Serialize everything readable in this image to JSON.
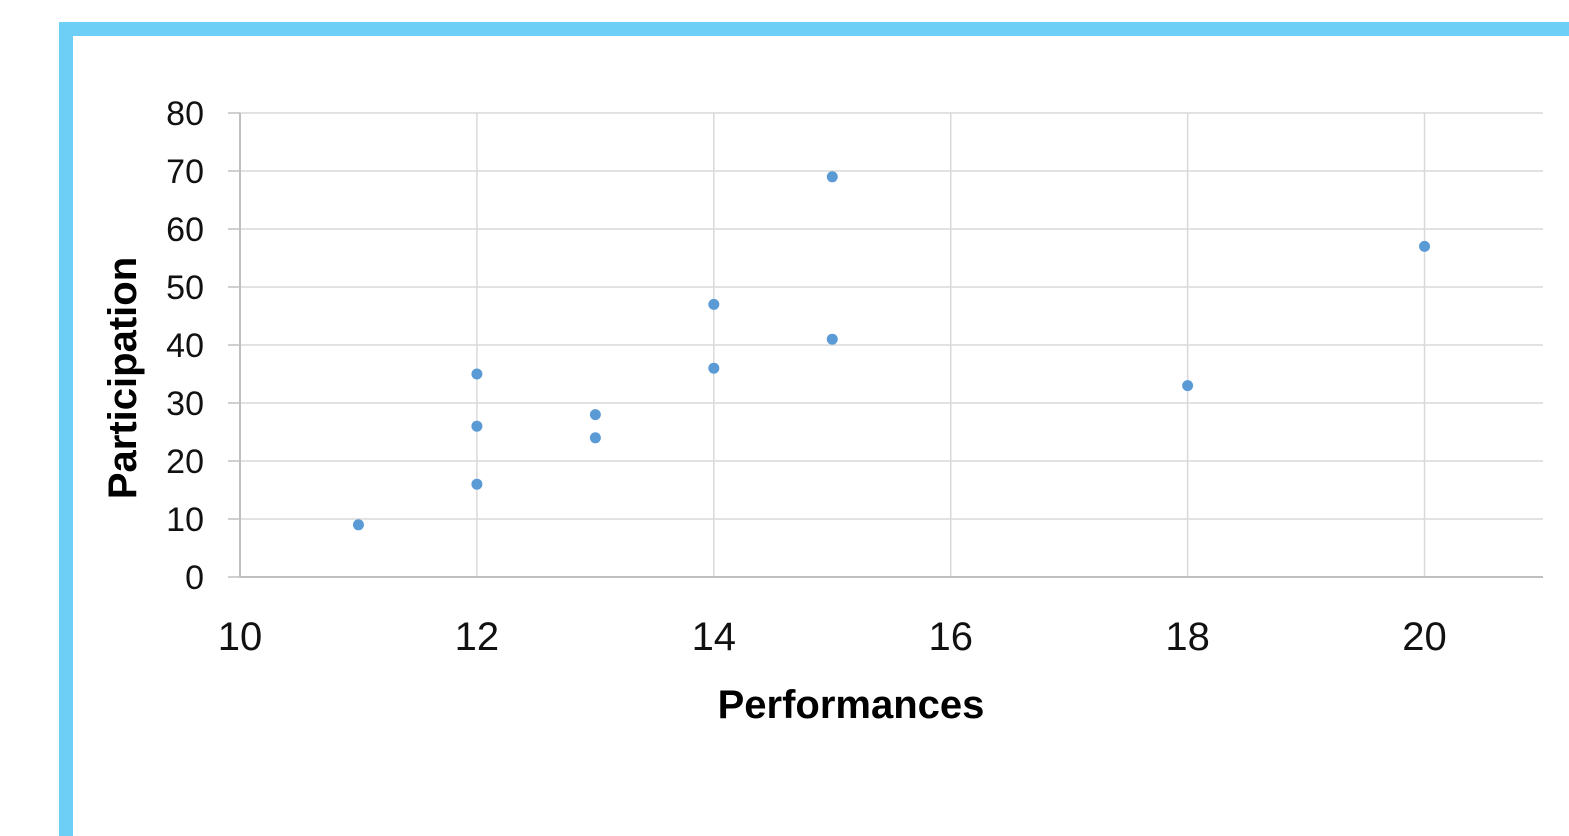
{
  "colors": {
    "frame_border": "#6ecff6",
    "point": "#5b9bd5",
    "grid": "#d9d9d9",
    "axis": "#bfbfbf",
    "text": "#111111"
  },
  "chart_data": {
    "type": "scatter",
    "title": "",
    "xlabel": "Performances",
    "ylabel": "Participation",
    "xlim": [
      10,
      21
    ],
    "ylim": [
      0,
      80
    ],
    "x_ticks": [
      10,
      12,
      14,
      16,
      18,
      20
    ],
    "y_ticks": [
      0,
      10,
      20,
      30,
      40,
      50,
      60,
      70,
      80
    ],
    "grid": true,
    "legend": "none",
    "series": [
      {
        "points": [
          {
            "x": 11,
            "y": 9
          },
          {
            "x": 12,
            "y": 16
          },
          {
            "x": 12,
            "y": 26
          },
          {
            "x": 12,
            "y": 35
          },
          {
            "x": 13,
            "y": 24
          },
          {
            "x": 13,
            "y": 28
          },
          {
            "x": 14,
            "y": 36
          },
          {
            "x": 14,
            "y": 47
          },
          {
            "x": 15,
            "y": 41
          },
          {
            "x": 15,
            "y": 69
          },
          {
            "x": 18,
            "y": 33
          },
          {
            "x": 20,
            "y": 57
          }
        ]
      }
    ]
  }
}
